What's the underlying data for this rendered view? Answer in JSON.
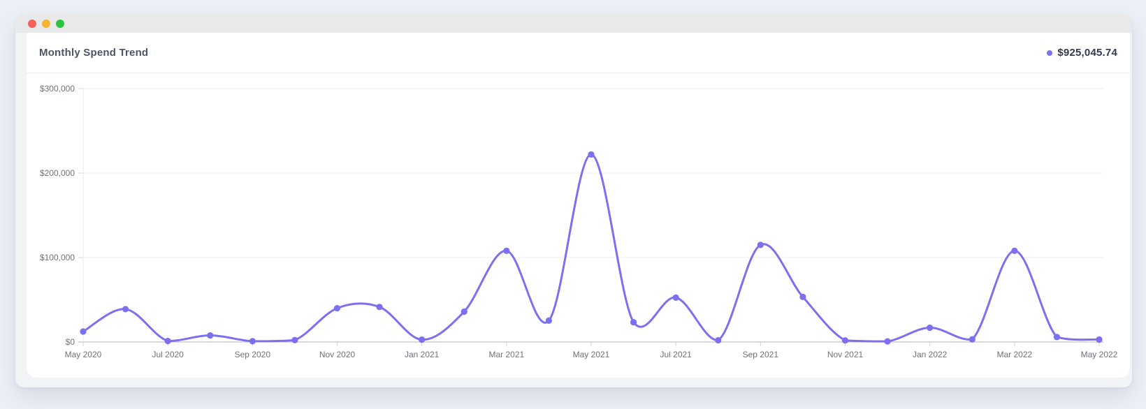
{
  "window": {
    "traffic_lights": [
      {
        "name": "close",
        "color": "#f6605a"
      },
      {
        "name": "minimize",
        "color": "#f4b62e"
      },
      {
        "name": "zoom",
        "color": "#2cc33e"
      }
    ]
  },
  "header": {
    "title": "Monthly Spend Trend",
    "legend": {
      "marker_color": "#7c6ff0",
      "value": "$925,045.74"
    }
  },
  "colors": {
    "accent_purple": "#7c6ff0",
    "page_background": "#edf1f7",
    "titlebar_background": "#e9e9ec",
    "grid_line": "#efefef",
    "zero_axis_line": "#b0b4ba",
    "axis_label_text": "#6d7278"
  },
  "chart_data": {
    "type": "line",
    "title": "Monthly Spend Trend",
    "curve": "smooth",
    "markers": true,
    "grid": true,
    "legend_position": "top-right",
    "legend_total": "$925,045.74",
    "line_color": "#7c6ff0",
    "marker_color": "#7c6ff0",
    "xlabel": "",
    "ylabel": "",
    "ylim": [
      0,
      300000
    ],
    "y_ticks": [
      {
        "value": 0,
        "label": "$0"
      },
      {
        "value": 100000,
        "label": "$100,000"
      },
      {
        "value": 200000,
        "label": "$200,000"
      },
      {
        "value": 300000,
        "label": "$300,000"
      }
    ],
    "x_tick_labels": [
      "May 2020",
      "Jul 2020",
      "Sep 2020",
      "Nov 2020",
      "Jan 2021",
      "Mar 2021",
      "May 2021",
      "Jul 2021",
      "Sep 2021",
      "Nov 2021",
      "Jan 2022",
      "Mar 2022",
      "May 2022"
    ],
    "categories": [
      "May 2020",
      "Jun 2020",
      "Jul 2020",
      "Aug 2020",
      "Sep 2020",
      "Oct 2020",
      "Nov 2020",
      "Dec 2020",
      "Jan 2021",
      "Feb 2021",
      "Mar 2021",
      "Apr 2021",
      "May 2021",
      "Jun 2021",
      "Jul 2021",
      "Aug 2021",
      "Sep 2021",
      "Oct 2021",
      "Nov 2021",
      "Dec 2021",
      "Jan 2022",
      "Feb 2022",
      "Mar 2022",
      "Apr 2022",
      "May 2022"
    ],
    "series": [
      {
        "name": "Monthly Spend",
        "values": [
          12400,
          38900,
          1200,
          7800,
          900,
          2300,
          40000,
          41500,
          2800,
          36000,
          108000,
          25300,
          222000,
          23400,
          52600,
          2100,
          115000,
          53400,
          1900,
          700,
          16900,
          3100,
          108000,
          5900,
          2945.74
        ]
      }
    ]
  }
}
